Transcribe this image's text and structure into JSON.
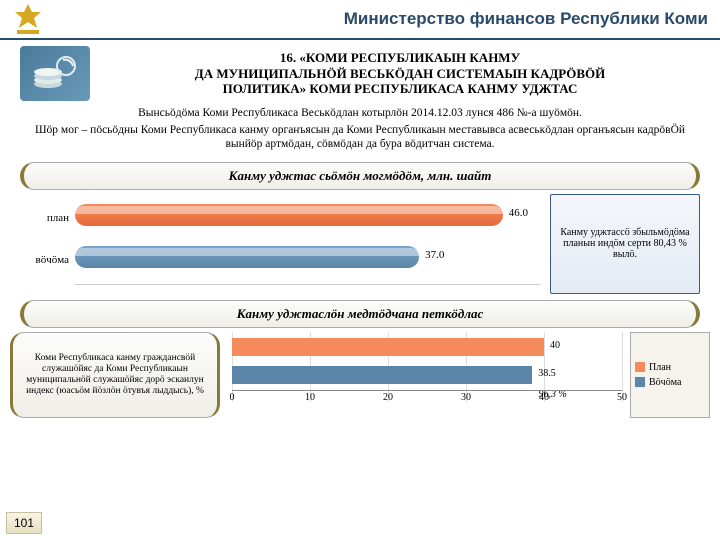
{
  "header": {
    "title": "Министерство финансов Республики Коми"
  },
  "emblem_color": "#d4a820",
  "main_title_lines": {
    "l1": "16. «КОМИ РЕСПУБЛИКАЫН КАНМУ",
    "l2": "ДА МУНИЦИПАЛЬНӦЙ ВЕСЬКӦДАН СИСТЕМАЫН КАДРӦВӦЙ",
    "l3": "ПОЛИТИКА» КОМИ РЕСПУБЛИКАСА КАНМУ УДЖТАС"
  },
  "subtext": "Вынсьӧдӧма Коми Республикаса Веськӧдлан котырлӧн 2014.12.03 лунся 486 №-а шуӧмӧн.",
  "description": "Шӧр мог – пӧсьӧдны Коми Республикаса канму органъясын да Коми Республикаын меставывса асвеськӧдлан органъясын кадрӧвӦй вынйӧр артмӧдан, сӧвмӧдан да бура вӧдитчан система.",
  "band1": "Канму уджтас сьӧмӧн могмӧдӧм, млн. шайт",
  "chart1": {
    "type": "bar-horizontal-3d",
    "xmax": 50,
    "series": [
      {
        "label": "план",
        "value": 46.0,
        "color_top": "#f58a5a",
        "color_bot": "#e56a3a",
        "display": "46.0"
      },
      {
        "label": "вӧчӧма",
        "value": 37.0,
        "color_top": "#7aa4c8",
        "color_bot": "#5a84a8",
        "display": "37.0"
      }
    ],
    "note": "Канму уджтассӧ збыльмӧдӧма планын индӧм серти 80,43 % вылӧ."
  },
  "band2": "Канму уджтаслӧн медтӧдчана петкӧдлас",
  "chart2": {
    "type": "bar-horizontal",
    "left_text": "Коми Республикаса канму граждансвӧй служашӧйяс да Коми Республикаын муниципальнӧй служашӧйяс дорӧ эскаилун индекс (юасьӧм йӧзлӧн ӧтувъя лыддысь), %",
    "xmin": 0,
    "xmax": 50,
    "xtick_step": 10,
    "series": [
      {
        "label_key": "plan",
        "value": 40.0,
        "color": "#f58a5a",
        "display": "40"
      },
      {
        "label_key": "vochoma",
        "value": 38.5,
        "color": "#5a84a8",
        "display": "38.5"
      }
    ],
    "extra_label": "96,3 %",
    "legend": {
      "plan": {
        "text": "План",
        "color": "#f58a5a"
      },
      "vochoma": {
        "text": "Вӧчӧма",
        "color": "#5a84a8"
      }
    },
    "xticks": [
      "0",
      "10",
      "20",
      "30",
      "40",
      "50"
    ]
  },
  "page_number": "101",
  "colors": {
    "header_line": "#2a4a6a",
    "band_border": "#8a7a3a",
    "grid": "#dddddd"
  }
}
